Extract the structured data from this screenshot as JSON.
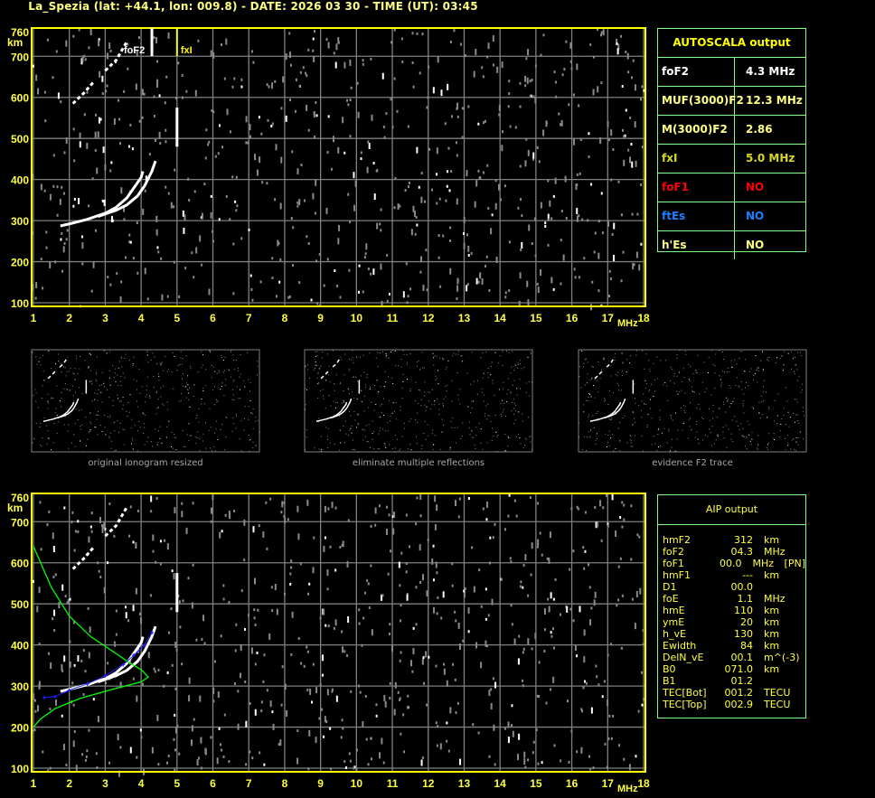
{
  "header": {
    "title": "La_Spezia (lat: +44.1, lon: 009.8) - DATE: 2026 03 30 - TIME (UT): 03:45"
  },
  "colors": {
    "axis": "#ffff00",
    "grid": "#808080",
    "trace": "#ffffff",
    "profile": "#00ff00",
    "fit": "#0000ff",
    "table_border": "#7fff7f"
  },
  "autoscala": {
    "title": "AUTOSCALA output",
    "rows": [
      {
        "key": "foF2",
        "value": "4.3 MHz",
        "color": "#ffffff"
      },
      {
        "key": "MUF(3000)F2",
        "value": "12.3 MHz",
        "color": "#ffff80"
      },
      {
        "key": "M(3000)F2",
        "value": "2.86",
        "color": "#ffff80"
      },
      {
        "key": "fxI",
        "value": "5.0 MHz",
        "color": "#d8d820"
      },
      {
        "key": "foF1",
        "value": "NO",
        "color": "#ff0000"
      },
      {
        "key": "ftEs",
        "value": "NO",
        "color": "#1e7fff"
      },
      {
        "key": "h'Es",
        "value": "NO",
        "color": "#ffff80"
      }
    ]
  },
  "aip": {
    "title": "AIP output",
    "rows": [
      [
        "hmF2",
        "312",
        "km",
        ""
      ],
      [
        "foF2",
        "04.3",
        "MHz",
        ""
      ],
      [
        "foF1",
        "00.0",
        "MHz",
        "[PN]"
      ],
      [
        "hmF1",
        "---",
        "km",
        ""
      ],
      [
        "D1",
        "00.0",
        "",
        ""
      ],
      [
        "foE",
        "1.1",
        "MHz",
        ""
      ],
      [
        "hmE",
        "110",
        "km",
        ""
      ],
      [
        "ymE",
        "20",
        "km",
        ""
      ],
      [
        "h_vE",
        "130",
        "km",
        ""
      ],
      [
        "Ewidth",
        "84",
        "km",
        ""
      ],
      [
        "DelN_vE",
        "00.1",
        "m^(-3)",
        ""
      ],
      [
        "B0",
        "071.0",
        "km",
        ""
      ],
      [
        "B1",
        "01.2",
        "",
        ""
      ],
      [
        "TEC[Bot]",
        "001.2",
        "TECU",
        ""
      ],
      [
        "TEC[Top]",
        "002.9",
        "TECU",
        ""
      ]
    ]
  },
  "thumbnails": [
    {
      "caption": "original ionogram resized"
    },
    {
      "caption": "eliminate multiple reflections"
    },
    {
      "caption": "evidence F2 trace"
    }
  ],
  "chart_data": [
    {
      "type": "scatter",
      "xlabel": "MHz",
      "ylabel": "km",
      "xlim": [
        1,
        18
      ],
      "ylim": [
        100,
        760
      ],
      "xticks": [
        "1",
        "2",
        "3",
        "4",
        "5",
        "6",
        "7",
        "8",
        "9",
        "10",
        "11",
        "12",
        "13",
        "14",
        "15",
        "16",
        "17",
        "18"
      ],
      "yticks": [
        "100",
        "200",
        "300",
        "400",
        "500",
        "600",
        "700",
        "760"
      ],
      "grid": true,
      "markers": [
        {
          "label": "foF2",
          "x": 4.3
        },
        {
          "label": "fxI",
          "x": 5.0
        }
      ],
      "traces": {
        "o_trace": [
          [
            1.75,
            287
          ],
          [
            2,
            292
          ],
          [
            2.5,
            303
          ],
          [
            3,
            318
          ],
          [
            3.3,
            332
          ],
          [
            3.6,
            355
          ],
          [
            3.8,
            380
          ],
          [
            4.0,
            405
          ],
          [
            4.05,
            420
          ]
        ],
        "x_trace": [
          [
            2.8,
            310
          ],
          [
            3.3,
            325
          ],
          [
            3.6,
            338
          ],
          [
            3.9,
            360
          ],
          [
            4.1,
            385
          ],
          [
            4.3,
            420
          ],
          [
            4.4,
            445
          ]
        ],
        "multiple_1": [
          [
            2.1,
            585
          ],
          [
            2.4,
            610
          ],
          [
            2.7,
            640
          ]
        ],
        "multiple_2": [
          [
            3.0,
            665
          ],
          [
            3.3,
            690
          ],
          [
            3.5,
            720
          ],
          [
            3.6,
            735
          ]
        ],
        "spread_5mhz": [
          [
            5.0,
            480
          ],
          [
            5.0,
            575
          ]
        ]
      }
    },
    {
      "type": "line",
      "xlabel": "MHz",
      "ylabel": "km",
      "xlim": [
        1,
        18
      ],
      "ylim": [
        100,
        760
      ],
      "xticks": [
        "1",
        "2",
        "3",
        "4",
        "5",
        "6",
        "7",
        "8",
        "9",
        "10",
        "11",
        "12",
        "13",
        "14",
        "15",
        "16",
        "17",
        "18"
      ],
      "yticks": [
        "100",
        "200",
        "300",
        "400",
        "500",
        "600",
        "700",
        "760"
      ],
      "grid": true,
      "profile": [
        [
          1.0,
          640
        ],
        [
          1.5,
          540
        ],
        [
          2.0,
          470
        ],
        [
          2.6,
          420
        ],
        [
          3.2,
          385
        ],
        [
          3.7,
          355
        ],
        [
          4.0,
          340
        ],
        [
          4.2,
          322
        ],
        [
          4.0,
          310
        ],
        [
          3.2,
          292
        ],
        [
          2.3,
          270
        ],
        [
          1.6,
          245
        ],
        [
          1.2,
          220
        ],
        [
          1.0,
          200
        ]
      ],
      "fit": [
        [
          1.3,
          272
        ],
        [
          1.6,
          274
        ],
        [
          2.0,
          290
        ],
        [
          2.5,
          305
        ],
        [
          3.0,
          325
        ],
        [
          3.5,
          352
        ],
        [
          3.8,
          375
        ],
        [
          4.1,
          400
        ],
        [
          4.3,
          430
        ]
      ]
    }
  ]
}
